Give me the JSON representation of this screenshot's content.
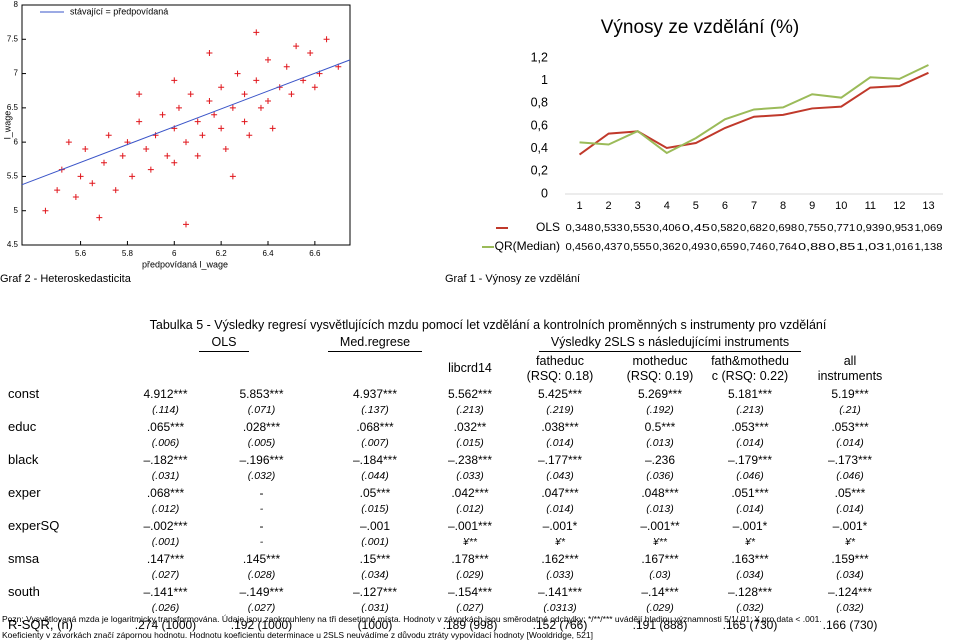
{
  "chart_data": [
    {
      "type": "scatter",
      "caption": "Graf 2 - Heteroskedasticita",
      "xlabel": "předpovídaná l_wage",
      "ylabel": "l_wage",
      "xlim": [
        5.35,
        6.75
      ],
      "xticks": [
        5.6,
        5.8,
        6,
        6.2,
        6.4,
        6.6
      ],
      "ylim": [
        4.5,
        8
      ],
      "yticks": [
        4.5,
        5,
        5.5,
        6,
        6.5,
        7,
        7.5,
        8
      ],
      "series": [
        {
          "color": "#e0151b",
          "x": [
            5.45,
            5.5,
            5.52,
            5.58,
            5.6,
            5.62,
            5.65,
            5.7,
            5.72,
            5.75,
            5.78,
            5.8,
            5.82,
            5.85,
            5.88,
            5.9,
            5.92,
            5.95,
            5.97,
            6.0,
            6.0,
            6.02,
            6.05,
            6.07,
            6.1,
            6.1,
            6.12,
            6.15,
            6.17,
            6.2,
            6.2,
            6.22,
            6.25,
            6.27,
            6.3,
            6.3,
            6.32,
            6.35,
            6.37,
            6.4,
            6.4,
            6.42,
            6.45,
            6.48,
            6.5,
            6.52,
            6.55,
            6.58,
            6.6,
            6.62,
            6.65,
            6.7,
            6.05,
            5.68,
            6.15,
            5.85,
            6.25,
            5.55,
            6.35,
            6.0
          ],
          "values": [
            5.0,
            5.3,
            5.6,
            5.2,
            5.5,
            5.9,
            5.4,
            5.7,
            6.1,
            5.3,
            5.8,
            6.0,
            5.5,
            6.3,
            5.9,
            5.6,
            6.1,
            6.4,
            5.8,
            6.2,
            5.7,
            6.5,
            6.0,
            6.7,
            6.3,
            5.8,
            6.1,
            6.6,
            6.4,
            6.2,
            6.8,
            5.9,
            6.5,
            7.0,
            6.3,
            6.7,
            6.1,
            6.9,
            6.5,
            7.2,
            6.6,
            6.2,
            6.8,
            7.1,
            6.7,
            7.4,
            6.9,
            7.3,
            6.8,
            7.0,
            7.5,
            7.1,
            4.8,
            4.9,
            7.3,
            6.7,
            5.5,
            6.0,
            7.6,
            6.9
          ]
        },
        {
          "name": "stávající = předpovídaná",
          "color": "#3a54c8",
          "style": "line",
          "x": [
            5.35,
            6.75
          ],
          "values": [
            5.38,
            7.2
          ]
        }
      ]
    },
    {
      "type": "line",
      "title": "Výnosy ze vzdělání (%)",
      "caption": "Graf 1 - Výnosy ze vzdělání",
      "categories": [
        "1",
        "2",
        "3",
        "4",
        "5",
        "6",
        "7",
        "8",
        "9",
        "10",
        "11",
        "12",
        "13"
      ],
      "ylim": [
        0,
        1.2
      ],
      "yticks": [
        0,
        {
          "value": 0.2,
          "label": "0,2"
        },
        {
          "value": 0.4,
          "label": "0,4"
        },
        {
          "value": 0.6,
          "label": "0,6"
        },
        {
          "value": 0.8,
          "label": "0,8"
        },
        1,
        {
          "value": 1.2,
          "label": "1,2"
        }
      ],
      "series": [
        {
          "name": "OLS",
          "color": "#c0392b",
          "values": [
            0.348,
            0.533,
            0.553,
            0.406,
            0.45,
            0.582,
            0.682,
            0.698,
            0.755,
            0.771,
            0.939,
            0.953,
            1.069
          ],
          "value_labels": [
            "0,348",
            "0,533",
            "0,553",
            "0,406",
            "0,45",
            "0,582",
            "0,682",
            "0,698",
            "0,755",
            "0,771",
            "0,939",
            "0,953",
            "1,069"
          ]
        },
        {
          "name": "QR(Median)",
          "color": "#9bbb59",
          "values": [
            0.456,
            0.437,
            0.555,
            0.362,
            0.493,
            0.659,
            0.746,
            0.764,
            0.88,
            0.85,
            1.03,
            1.016,
            1.138
          ],
          "value_labels": [
            "0,456",
            "0,437",
            "0,555",
            "0,362",
            "0,493",
            "0,659",
            "0,746",
            "0,764",
            "0,88",
            "0,85",
            "1,03",
            "1,016",
            "1,138"
          ]
        }
      ]
    }
  ],
  "table": {
    "title": "Tabulka 5 - Výsledky regresí vysvětlujících mzdu pomocí let vzdělání a kontrolních proměnných s instrumenty pro vzdělání",
    "group_headers": [
      "OLS",
      "Med.regrese",
      "Výsledky 2SLS s následujícími instruments"
    ],
    "sub_headers": [
      [
        "libcrd14"
      ],
      [
        "fatheduc",
        "(RSQ: 0.18)"
      ],
      [
        "motheduc",
        "(RSQ: 0.19)"
      ],
      [
        "fath&mothedu",
        "c (RSQ: 0.22)"
      ],
      [
        "all",
        "instruments"
      ]
    ],
    "rows": [
      {
        "label": "const",
        "coef": [
          "4.912***",
          "5.853***",
          "4.937***",
          "5.562***",
          "5.425***",
          "5.269***",
          "5.181***",
          "5.19***"
        ],
        "se": [
          "(.114)",
          "(.071)",
          "(.137)",
          "(.213)",
          "(.219)",
          "(.192)",
          "(.213)",
          "(.21)"
        ]
      },
      {
        "label": "educ",
        "coef": [
          ".065***",
          ".028***",
          ".068***",
          ".032**",
          ".038***",
          "0.5***",
          ".053***",
          ".053***"
        ],
        "se": [
          "(.006)",
          "(.005)",
          "(.007)",
          "(.015)",
          "(.014)",
          "(.013)",
          "(.014)",
          "(.014)"
        ]
      },
      {
        "label": "black",
        "coef": [
          "–.182***",
          "–.196***",
          "–.184***",
          "–.238***",
          "–.177***",
          "–.236",
          "–.179***",
          "–.173***"
        ],
        "se": [
          "(.031)",
          "(.032)",
          "(.044)",
          "(.033)",
          "(.043)",
          "(.036)",
          "(.046)",
          "(.046)"
        ]
      },
      {
        "label": "exper",
        "coef": [
          ".068***",
          "-",
          ".05***",
          ".042***",
          ".047***",
          ".048***",
          ".051***",
          ".05***"
        ],
        "se": [
          "(.012)",
          "-",
          "(.015)",
          "(.012)",
          "(.014)",
          "(.013)",
          "(.014)",
          "(.014)"
        ]
      },
      {
        "label": "experSQ",
        "coef": [
          "–.002***",
          "-",
          "–.001",
          "–.001***",
          "–.001*",
          "–.001**",
          "–.001*",
          "–.001*"
        ],
        "se": [
          "(.001)",
          "-",
          "(.001)",
          "¥**",
          "¥*",
          "¥**",
          "¥*",
          "¥*"
        ]
      },
      {
        "label": "smsa",
        "coef": [
          ".147***",
          ".145***",
          ".15***",
          ".178***",
          ".162***",
          ".167***",
          ".163***",
          ".159***"
        ],
        "se": [
          "(.027)",
          "(.028)",
          "(.034)",
          "(.029)",
          "(.033)",
          "(.03)",
          "(.034)",
          "(.034)"
        ]
      },
      {
        "label": "south",
        "coef": [
          "–.141***",
          "–.149***",
          "–.127***",
          "–.154***",
          "–.141***",
          "–.14***",
          "–.128***",
          "–.124***"
        ],
        "se": [
          "(.026)",
          "(.027)",
          "(.031)",
          "(.027)",
          "(.0313)",
          "(.029)",
          "(.032)",
          "(.032)"
        ]
      },
      {
        "label": "R-SQR, (n)",
        "coef": [
          ".274 (1000)",
          ".192 (1000)",
          "(1000)",
          ".189 (998)",
          ".152 (766)",
          ".191 (888)",
          ".165 (730)",
          ".166 (730)"
        ]
      }
    ],
    "notes": [
      "Pozn: Vysvětlovaná mzda je logaritmicky transformována. Údaje jsou zaokrouhleny na tři desetinné místa. Hodnoty v závorkách jsou směrodatné odchylky; */**/*** uvádějí hladinu významnosti 5/1/.01; ¥ pro data < .001.",
      "Koeficienty v závorkách značí zápornou hodnotu. Hodnotu koeficientu determinace u 2SLS neuvádíme z důvodu ztráty vypovídací hodnoty [Wooldridge, 521]"
    ]
  }
}
